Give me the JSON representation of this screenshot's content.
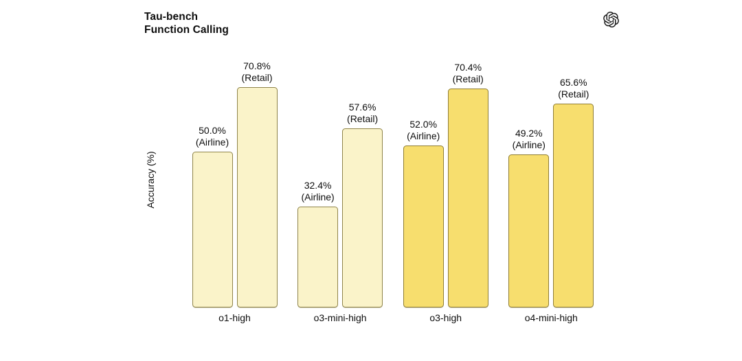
{
  "header": {
    "title_line1": "Tau-bench",
    "title_line2": "Function Calling",
    "logo": "openai-logo"
  },
  "chart_data": {
    "type": "bar",
    "title": "Tau-bench Function Calling",
    "xlabel": "",
    "ylabel": "Accuracy (%)",
    "categories": [
      "o1-high",
      "o3-mini-high",
      "o3-high",
      "o4-mini-high"
    ],
    "series": [
      {
        "name": "Airline",
        "values": [
          50.0,
          32.4,
          52.0,
          49.2
        ]
      },
      {
        "name": "Retail",
        "values": [
          70.8,
          57.6,
          70.4,
          65.6
        ]
      }
    ],
    "bar_annotations": [
      [
        "50.0% (Airline)",
        "70.8% (Retail)"
      ],
      [
        "32.4% (Airline)",
        "57.6% (Retail)"
      ],
      [
        "52.0% (Airline)",
        "70.4% (Retail)"
      ],
      [
        "49.2% (Airline)",
        "65.6% (Retail)"
      ]
    ],
    "ylim": [
      0,
      100
    ],
    "grid": false,
    "legend": "none",
    "background": "#ffffff",
    "group_fills": [
      "#FAF3C9",
      "#FAF3C9",
      "#F7DE6E",
      "#F7DE6E"
    ],
    "group_strokes": [
      "#8F8449",
      "#8F8449",
      "#8F7D33",
      "#8F7D33"
    ],
    "text_color": "#0d0d0d"
  }
}
